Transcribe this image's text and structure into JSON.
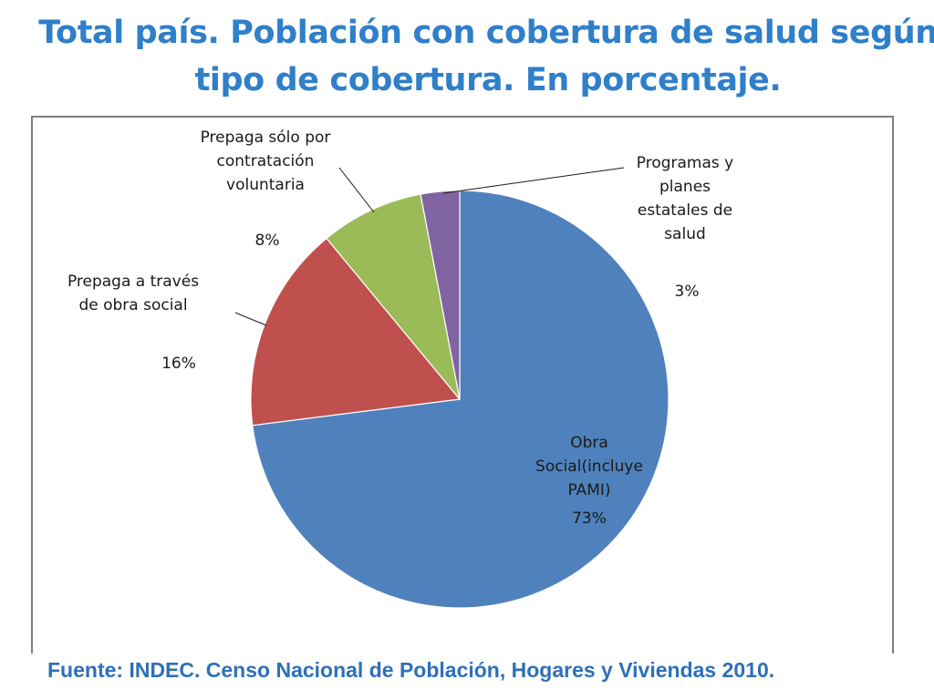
{
  "title": {
    "line1": "Total país. Población con cobertura de salud según",
    "line2": "tipo de cobertura. En porcentaje."
  },
  "source": "Fuente: INDEC. Censo Nacional de Población, Hogares y Viviendas 2010.",
  "chart_data": {
    "type": "pie",
    "title": "Total país. Población con cobertura de salud según tipo de cobertura. En porcentaje.",
    "slices": [
      {
        "name": "Obra Social(incluye PAMI)",
        "label_lines": [
          "Obra",
          "Social(incluye",
          "PAMI)"
        ],
        "value": 73,
        "value_label": "73%",
        "color": "#4f81bd"
      },
      {
        "name": "Prepaga a través de obra social",
        "label_lines": [
          "Prepaga  a través",
          "de obra social"
        ],
        "value": 16,
        "value_label": "16%",
        "color": "#c0504d"
      },
      {
        "name": "Prepaga sólo por contratación voluntaria",
        "label_lines": [
          "Prepaga sólo por",
          "contratación",
          "voluntaria"
        ],
        "value": 8,
        "value_label": "8%",
        "color": "#9bbb59"
      },
      {
        "name": "Programas y planes estatales de salud",
        "label_lines": [
          "Programas y",
          "planes",
          "estatales de",
          "salud"
        ],
        "value": 3,
        "value_label": "3%",
        "color": "#8064a2"
      }
    ],
    "start_angle_deg": 0,
    "direction": "clockwise",
    "legend": "none",
    "data_labels": "outside-with-leaders"
  }
}
